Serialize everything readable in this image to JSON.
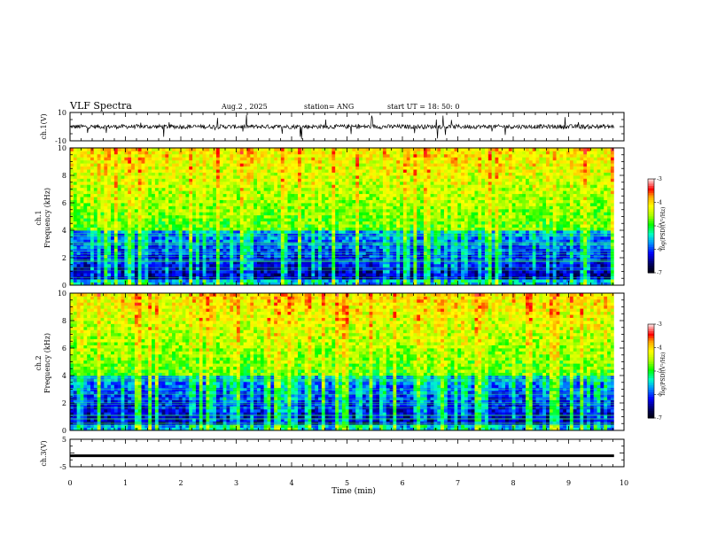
{
  "header": {
    "title": "VLF Spectra",
    "date": "Aug.2 , 2025",
    "station": "station= ANG",
    "start": "start UT = 18: 50: 0"
  },
  "colors": {
    "scale": [
      "#000000",
      "#000a7a",
      "#0000ff",
      "#00a0ff",
      "#00ffd0",
      "#00ff00",
      "#c8ff00",
      "#ffff00",
      "#ffb000",
      "#ff0000",
      "#ffc8c8",
      "#ffffff"
    ]
  },
  "chart_data": [
    {
      "type": "line",
      "panel": "ch1-waveform",
      "ylabel": "ch.1(V)",
      "ylim": [
        -10,
        10
      ],
      "yticks": [
        "10",
        "-10"
      ],
      "series": [
        {
          "trace": "noisy",
          "baseline": 0,
          "amplitude_typical": 3,
          "amplitude_spikes": 9
        }
      ]
    },
    {
      "type": "heatmap",
      "panel": "ch1-spectrogram",
      "ylabel": "Frequency (kHz)",
      "channel_label": "ch.1",
      "ylim": [
        0,
        10
      ],
      "yticks": [
        "0",
        "2",
        "4",
        "6",
        "8",
        "10"
      ],
      "colorbar": {
        "label": "log(PSD)(V²/Hz)",
        "ticks": [
          "-3",
          "-4",
          "-5",
          "-6",
          "-7"
        ],
        "range": [
          -7,
          -3
        ]
      }
    },
    {
      "type": "heatmap",
      "panel": "ch2-spectrogram",
      "ylabel": "Frequency (kHz)",
      "channel_label": "ch.2",
      "ylim": [
        0,
        10
      ],
      "yticks": [
        "0",
        "2",
        "4",
        "6",
        "8",
        "10"
      ],
      "colorbar": {
        "label": "log(PSD)(V²/Hz)",
        "ticks": [
          "-3",
          "-4",
          "-5",
          "-6",
          "-7"
        ],
        "range": [
          -7,
          -3
        ]
      }
    },
    {
      "type": "line",
      "panel": "ch3-waveform",
      "ylabel": "ch.3(V)",
      "ylim": [
        -5,
        5
      ],
      "yticks": [
        "5",
        "-5"
      ],
      "series": [
        {
          "trace": "flat",
          "value": -1.0
        }
      ]
    }
  ],
  "xaxis": {
    "label": "Time (min)",
    "xlim": [
      0,
      10
    ],
    "ticks": [
      "0",
      "1",
      "2",
      "3",
      "4",
      "5",
      "6",
      "7",
      "8",
      "9",
      "10"
    ]
  }
}
